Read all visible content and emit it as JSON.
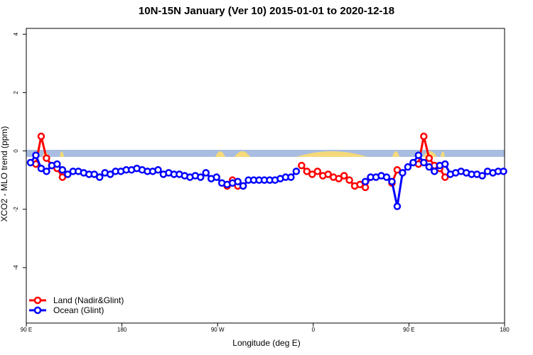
{
  "chart_data": {
    "type": "line",
    "title": "10N-15N January (Ver 10)   2015-01-01 to 2020-12-18",
    "x_label": "Longitude (deg E)",
    "y_label": "XCO2 - MLO trend (ppm)",
    "x": [
      94,
      99,
      104,
      109,
      114,
      119,
      124,
      129,
      134,
      139,
      144,
      149,
      154,
      159,
      164,
      169,
      174,
      179,
      184,
      189,
      194,
      199,
      204,
      209,
      214,
      219,
      224,
      229,
      234,
      239,
      244,
      249,
      254,
      259,
      264,
      269,
      274,
      279,
      284,
      289,
      294,
      299,
      304,
      309,
      314,
      319,
      324,
      329,
      334,
      339,
      344,
      349,
      354,
      359,
      364,
      369,
      374,
      379,
      384,
      389,
      394,
      399,
      404,
      409,
      414,
      419,
      424,
      429,
      434,
      439,
      444,
      449,
      454,
      459,
      464,
      469,
      474,
      479,
      484,
      489,
      494,
      499,
      504,
      509,
      514,
      519,
      524,
      529,
      534,
      539
    ],
    "xlim": [
      90,
      540
    ],
    "xticks": [
      {
        "value": 90,
        "label": "90 E"
      },
      180,
      {
        "value": 270,
        "label": "90 W"
      },
      {
        "value": 360,
        "label": "0"
      },
      {
        "value": 450,
        "label": "90 E"
      },
      {
        "value": 540,
        "label": "180"
      }
    ],
    "ylim": [
      -5.9,
      4.2
    ],
    "yticks": [
      -4,
      -2,
      0,
      2,
      4
    ],
    "series": [
      {
        "name": "Land (Nadir&Glint)",
        "color": "#ff0000",
        "values": [
          null,
          -0.45,
          0.5,
          -0.25,
          -0.5,
          -0.6,
          -0.9,
          null,
          null,
          null,
          null,
          null,
          null,
          null,
          null,
          null,
          null,
          null,
          null,
          null,
          null,
          null,
          null,
          null,
          null,
          null,
          null,
          null,
          null,
          null,
          null,
          null,
          null,
          null,
          null,
          null,
          null,
          -1.2,
          -1.0,
          -1.2,
          -1.2,
          null,
          null,
          null,
          null,
          null,
          null,
          null,
          null,
          null,
          null,
          -0.5,
          -0.7,
          -0.8,
          -0.7,
          -0.85,
          -0.8,
          -0.9,
          -0.95,
          -0.85,
          -1.0,
          -1.2,
          -1.15,
          -1.25,
          -0.9,
          null,
          null,
          null,
          -1.1,
          -0.65,
          null,
          null,
          null,
          -0.45,
          0.5,
          -0.25,
          -0.5,
          -0.6,
          -0.9,
          null,
          null,
          null,
          null,
          null,
          null,
          null,
          null,
          null,
          null,
          null
        ]
      },
      {
        "name": "Ocean (Glint)",
        "color": "#0000ff",
        "values": [
          -0.4,
          -0.15,
          -0.6,
          -0.7,
          -0.5,
          -0.45,
          -0.65,
          -0.8,
          -0.7,
          -0.7,
          -0.75,
          -0.8,
          -0.8,
          -0.9,
          -0.75,
          -0.8,
          -0.7,
          -0.7,
          -0.65,
          -0.65,
          -0.6,
          -0.65,
          -0.7,
          -0.7,
          -0.65,
          -0.8,
          -0.75,
          -0.8,
          -0.8,
          -0.85,
          -0.9,
          -0.85,
          -0.9,
          -0.75,
          -0.95,
          -0.9,
          -1.1,
          -1.15,
          -1.1,
          -1.05,
          -1.2,
          -1.0,
          -1.0,
          -1.0,
          -1.0,
          -1.0,
          -1.0,
          -0.95,
          -0.9,
          -0.9,
          -0.7,
          null,
          null,
          null,
          null,
          null,
          null,
          null,
          null,
          null,
          null,
          null,
          null,
          -1.05,
          -0.9,
          -0.9,
          -0.85,
          -0.9,
          -1.05,
          -1.9,
          -0.75,
          -0.55,
          -0.4,
          -0.15,
          -0.4,
          -0.55,
          -0.7,
          -0.5,
          -0.45,
          -0.8,
          -0.75,
          -0.7,
          -0.75,
          -0.8,
          -0.8,
          -0.85,
          -0.7,
          -0.75,
          -0.7,
          -0.7
        ]
      }
    ]
  }
}
